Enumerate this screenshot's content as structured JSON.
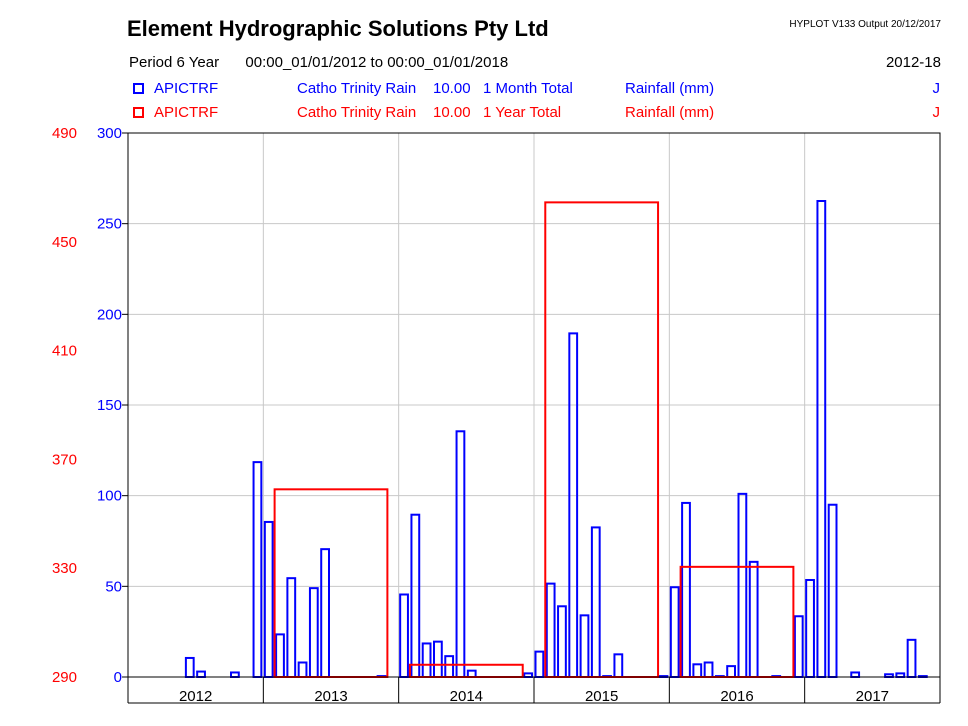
{
  "header": {
    "title": "Element Hydrographic Solutions Pty Ltd",
    "program_output": "HYPLOT V133  Output 20/12/2017",
    "period_label": "Period",
    "period_length": "6 Year",
    "period_range": "00:00_01/01/2012 to 00:00_01/01/2018",
    "period_code": "2012-18"
  },
  "legend": [
    {
      "site": "APICTRF",
      "station": "Catho Trinity Rain",
      "variable": "10.00",
      "aggregation": "1 Month Total",
      "units": "Rainfall (mm)",
      "flag": "J",
      "color": "#0000ff"
    },
    {
      "site": "APICTRF",
      "station": "Catho Trinity Rain",
      "variable": "10.00",
      "aggregation": "1 Year Total",
      "units": "Rainfall (mm)",
      "flag": "J",
      "color": "#ff0000"
    }
  ],
  "chart_data": {
    "type": "bar",
    "grid": true,
    "x_categories": [
      "2012",
      "2013",
      "2014",
      "2015",
      "2016",
      "2017"
    ],
    "y_left_inner": {
      "color": "#0000ff",
      "ylim": [
        0,
        300
      ],
      "ticks": [
        "0",
        "50",
        "100",
        "150",
        "200",
        "250",
        "300"
      ]
    },
    "y_left_outer": {
      "color": "#ff0000",
      "ylim": [
        290,
        490
      ],
      "ticks": [
        "290",
        "330",
        "370",
        "410",
        "450",
        "490"
      ]
    },
    "series": [
      {
        "axis": "inner",
        "color": "#0000ff",
        "style": "monthly-bars",
        "start": "2012-01",
        "values": [
          0,
          0,
          0,
          0,
          0,
          10.5,
          3,
          0,
          0,
          2.5,
          0,
          118.5,
          85.5,
          23.5,
          54.5,
          8,
          49,
          70.5,
          0,
          0,
          0,
          0,
          0.5,
          0,
          45.5,
          89.5,
          18.5,
          19.5,
          11.5,
          135.5,
          3.5,
          0,
          0,
          0,
          0,
          2,
          14,
          51.5,
          39,
          189.5,
          34,
          82.5,
          0.5,
          12.5,
          0,
          0,
          0,
          0.5,
          49.5,
          96,
          7,
          8,
          0.5,
          6,
          101,
          63.5,
          0,
          0.5,
          0,
          33.5,
          53.5,
          262.5,
          95,
          0,
          2.5,
          0,
          0,
          1.5,
          2,
          20.5,
          0.5,
          0
        ]
      },
      {
        "axis": "outer",
        "color": "#ff0000",
        "style": "annual-boxes",
        "categories": [
          "2012",
          "2013",
          "2014",
          "2015",
          "2016",
          "2017"
        ],
        "values": [
          0,
          359,
          294.5,
          464.5,
          330.5,
          0
        ]
      }
    ]
  }
}
